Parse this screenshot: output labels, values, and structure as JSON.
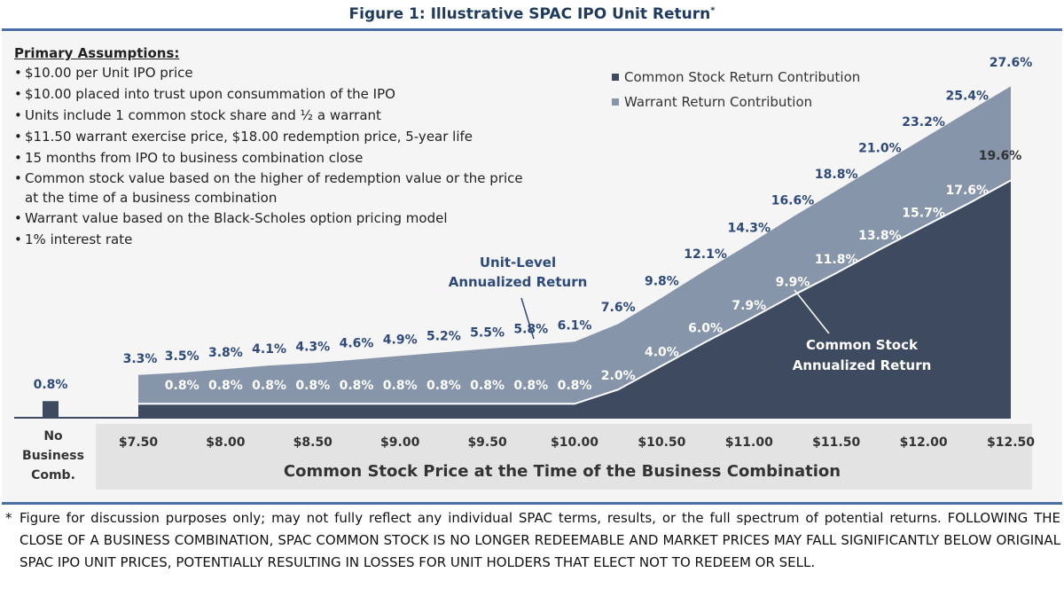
{
  "figure": {
    "title": "Figure 1: Illustrative SPAC IPO Unit Return",
    "title_mark": "*"
  },
  "assumptions": {
    "heading": "Primary Assumptions:",
    "items": [
      "$10.00 per Unit IPO price",
      "$10.00 placed into trust upon consummation of the IPO",
      "Units include 1 common stock share and ½ a warrant",
      "$11.50 warrant exercise price, $18.00 redemption price, 5-year life",
      "15 months from IPO to business combination close",
      "Common stock value based on the higher of redemption value or the price at the time of a business combination",
      "Warrant value based on the Black-Scholes option pricing model",
      "1% interest rate"
    ]
  },
  "chart_data": {
    "type": "area",
    "xlabel": "Common Stock Price at the Time of the Business Combination",
    "x_tick_labels": [
      "$7.50",
      "$8.00",
      "$8.50",
      "$9.00",
      "$9.50",
      "$10.00",
      "$10.50",
      "$11.00",
      "$11.50",
      "$12.00",
      "$12.50"
    ],
    "no_business_comb": {
      "label_lines": [
        "No",
        "Business",
        "Comb."
      ],
      "common_stock_return": 0.8,
      "value_label": "0.8%"
    },
    "x": [
      7.5,
      7.75,
      8.0,
      8.25,
      8.5,
      8.75,
      9.0,
      9.25,
      9.5,
      9.75,
      10.0,
      10.25,
      10.5,
      10.75,
      11.0,
      11.25,
      11.5,
      11.75,
      12.0,
      12.25,
      12.5
    ],
    "series": [
      {
        "name": "Common Stock Return Contribution",
        "color": "#3d4a5f",
        "values": [
          0.8,
          0.8,
          0.8,
          0.8,
          0.8,
          0.8,
          0.8,
          0.8,
          0.8,
          0.8,
          0.8,
          2.0,
          4.0,
          6.0,
          7.9,
          9.9,
          11.8,
          13.8,
          15.7,
          17.6,
          19.6
        ],
        "point_labels": [
          "",
          "0.8%",
          "0.8%",
          "0.8%",
          "0.8%",
          "0.8%",
          "0.8%",
          "0.8%",
          "0.8%",
          "0.8%",
          "0.8%",
          "2.0%",
          "4.0%",
          "6.0%",
          "7.9%",
          "9.9%",
          "11.8%",
          "13.8%",
          "15.7%",
          "17.6%",
          "19.6%"
        ]
      },
      {
        "name": "Warrant Return Contribution",
        "color": "#8695aa",
        "total_values": [
          3.3,
          3.5,
          3.8,
          4.1,
          4.3,
          4.6,
          4.9,
          5.2,
          5.5,
          5.8,
          6.1,
          7.6,
          9.8,
          12.1,
          14.3,
          16.6,
          18.8,
          21.0,
          23.2,
          25.4,
          27.6
        ],
        "point_labels": [
          "3.3%",
          "3.5%",
          "3.8%",
          "4.1%",
          "4.3%",
          "4.6%",
          "4.9%",
          "5.2%",
          "5.5%",
          "5.8%",
          "6.1%",
          "7.6%",
          "9.8%",
          "12.1%",
          "14.3%",
          "16.6%",
          "18.8%",
          "21.0%",
          "23.2%",
          "25.4%",
          "27.6%"
        ]
      }
    ],
    "legend": [
      "Common Stock Return Contribution",
      "Warrant Return Contribution"
    ],
    "legend_position": "top-right",
    "annotations": [
      {
        "text_lines": [
          "Unit-Level",
          "Annualized Return"
        ],
        "color": "#2d4a7a"
      },
      {
        "text_lines": [
          "Common Stock",
          "Annualized Return"
        ],
        "color": "#ffffff"
      }
    ],
    "ylim": [
      0,
      30
    ],
    "grid": false
  },
  "footnote": {
    "mark": "*",
    "text": "Figure for discussion purposes only; may not fully reflect any individual SPAC terms, results, or the full spectrum of potential returns. FOLLOWING THE CLOSE OF A BUSINESS COMBINATION, SPAC COMMON STOCK IS NO LONGER REDEEMABLE AND MARKET PRICES MAY FALL SIGNIFICANTLY BELOW ORIGINAL SPAC IPO UNIT PRICES, POTENTIALLY RESULTING IN LOSSES FOR UNIT HOLDERS THAT ELECT NOT TO REDEEM OR SELL."
  }
}
